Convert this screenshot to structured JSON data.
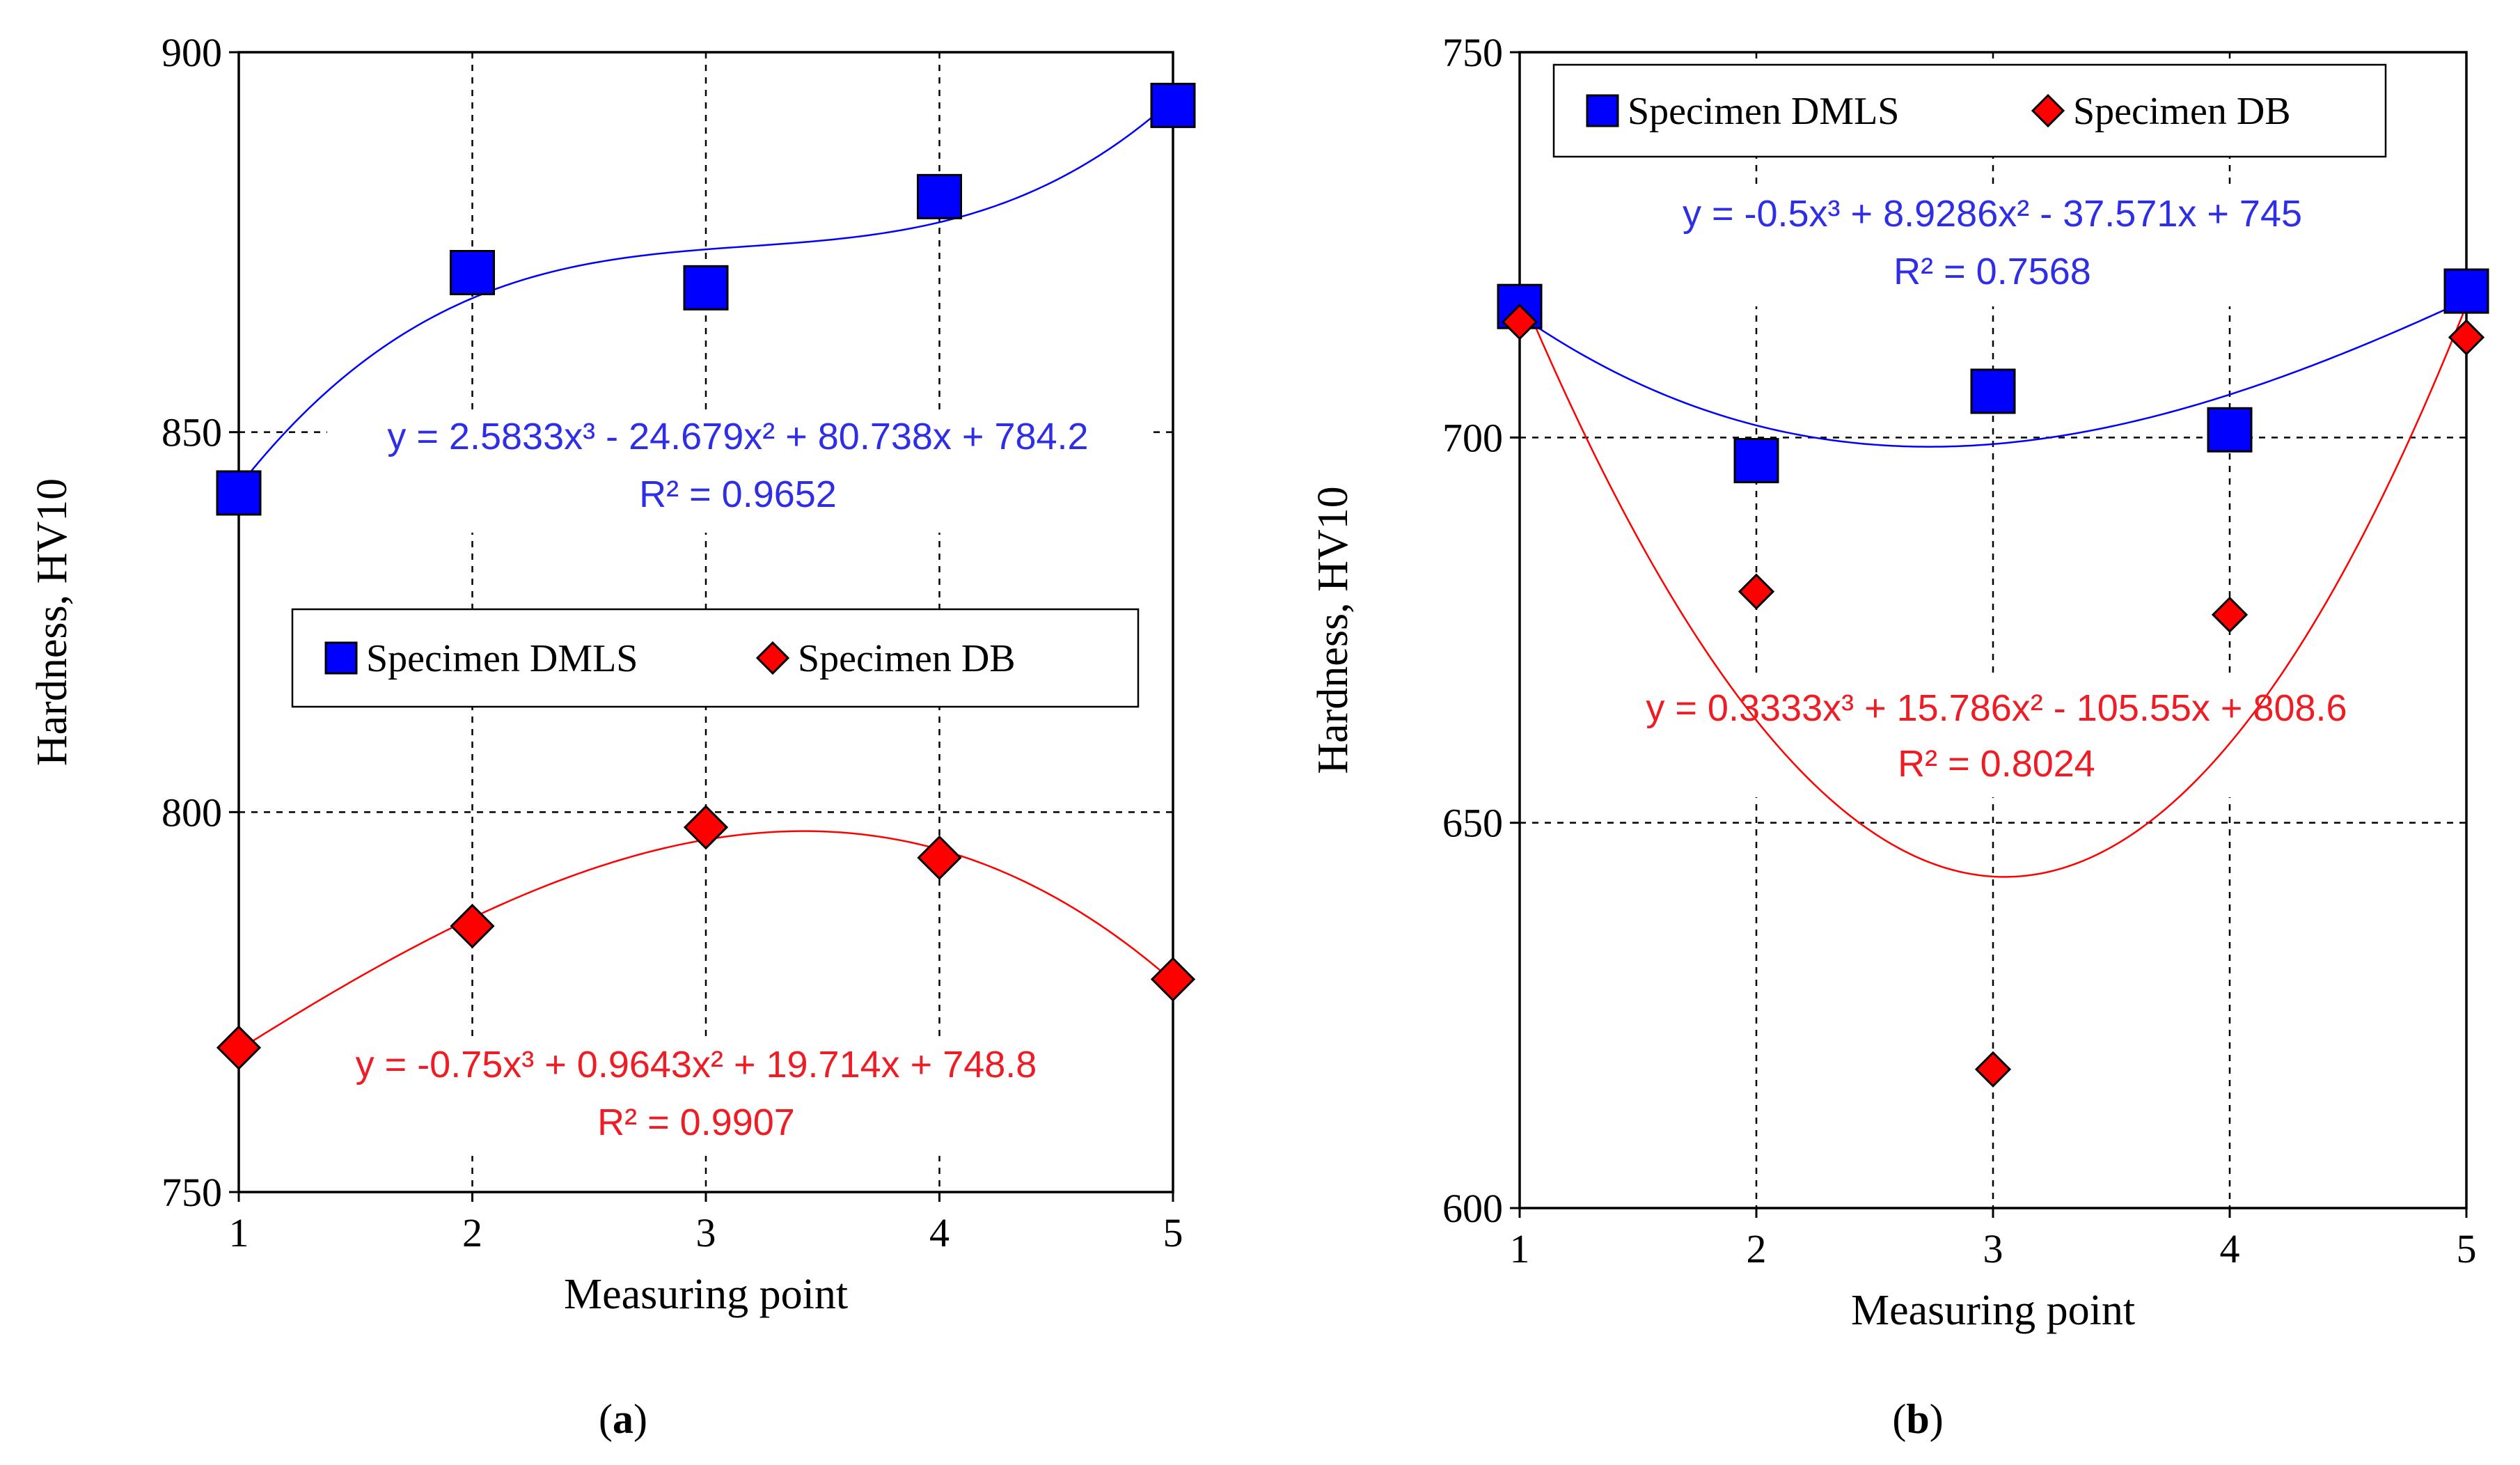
{
  "figure": {
    "labels": {
      "a": "a",
      "b": "b"
    }
  },
  "colors": {
    "dmls": "#0000ff",
    "db": "#ff0000",
    "dmls_text": "#2e2ee6",
    "db_text": "#ee1c24",
    "frame": "#000000"
  },
  "chart_data": [
    {
      "id": "a",
      "type": "scatter",
      "xlabel": "Measuring point",
      "ylabel": "Hardness, HV10",
      "x": [
        1,
        2,
        3,
        4,
        5
      ],
      "ylim": [
        750,
        900
      ],
      "yticks": [
        750,
        800,
        850,
        900
      ],
      "grid": "dashed",
      "legend": {
        "placement": "center",
        "entries": [
          "Specimen DMLS",
          "Specimen DB"
        ]
      },
      "series": [
        {
          "name": "Specimen DMLS",
          "marker": "square",
          "values": [
            842,
            871,
            869,
            881,
            893
          ],
          "trendline": {
            "type": "poly3",
            "coef": [
              2.5833,
              -24.679,
              80.738,
              784.2
            ]
          },
          "equation": "y = 2.5833x³ - 24.679x² + 80.738x + 784.2",
          "r2": "R² = 0.9652"
        },
        {
          "name": "Specimen DB",
          "marker": "diamond",
          "values": [
            769,
            785,
            798,
            794,
            778
          ],
          "trendline": {
            "type": "poly3",
            "coef": [
              -0.75,
              0.9643,
              19.714,
              748.8
            ]
          },
          "equation": "y = -0.75x³ + 0.9643x² + 19.714x + 748.8",
          "r2": "R² = 0.9907"
        }
      ]
    },
    {
      "id": "b",
      "type": "scatter",
      "xlabel": "Measuring point",
      "ylabel": "Hardness, HV10",
      "x": [
        1,
        2,
        3,
        4,
        5
      ],
      "ylim": [
        600,
        750
      ],
      "yticks": [
        600,
        650,
        700,
        750
      ],
      "grid": "dashed",
      "legend": {
        "placement": "top",
        "entries": [
          "Specimen DMLS",
          "Specimen DB"
        ]
      },
      "series": [
        {
          "name": "Specimen DMLS",
          "marker": "square",
          "values": [
            717,
            697,
            706,
            701,
            719
          ],
          "trendline": {
            "type": "poly3",
            "coef": [
              -0.5,
              8.9286,
              -37.571,
              745
            ]
          },
          "equation": "y = -0.5x³ + 8.9286x² - 37.571x + 745",
          "r2": "R² = 0.7568"
        },
        {
          "name": "Specimen DB",
          "marker": "diamond",
          "values": [
            715,
            680,
            618,
            677,
            713
          ],
          "trendline": {
            "type": "poly3",
            "coef": [
              0.3333,
              15.786,
              -105.55,
              808.6
            ]
          },
          "equation": "y = 0.3333x³ + 15.786x² - 105.55x + 808.6",
          "r2": "R² = 0.8024"
        }
      ]
    }
  ]
}
